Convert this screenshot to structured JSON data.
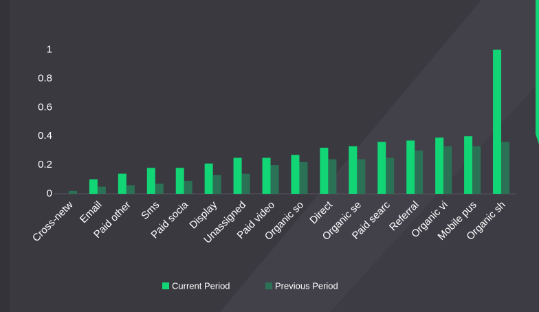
{
  "chart_data": {
    "type": "bar",
    "categories": [
      "Cross-netw",
      "Email",
      "Paid other",
      "Sms",
      "Paid socia",
      "Display",
      "Unassigned",
      "Paid video",
      "Organic so",
      "Direct",
      "Organic se",
      "Paid searc",
      "Referral",
      "Organic vi",
      "Mobile pus",
      "Organic sh"
    ],
    "series": [
      {
        "name": "Current Period",
        "color": "#12d676",
        "values": [
          0,
          0.1,
          0.14,
          0.18,
          0.18,
          0.21,
          0.25,
          0.25,
          0.27,
          0.32,
          0.33,
          0.36,
          0.37,
          0.39,
          0.4,
          1.0
        ]
      },
      {
        "name": "Previous Period",
        "color": "#2b7155",
        "values": [
          0.02,
          0.05,
          0.06,
          0.07,
          0.09,
          0.13,
          0.14,
          0.2,
          0.22,
          0.24,
          0.24,
          0.25,
          0.3,
          0.33,
          0.33,
          0.36
        ]
      }
    ],
    "ylim": [
      0,
      1.05
    ],
    "yticks": [
      0,
      0.2,
      0.4,
      0.6,
      0.8,
      1
    ],
    "grid": false,
    "legend": "bottom"
  }
}
